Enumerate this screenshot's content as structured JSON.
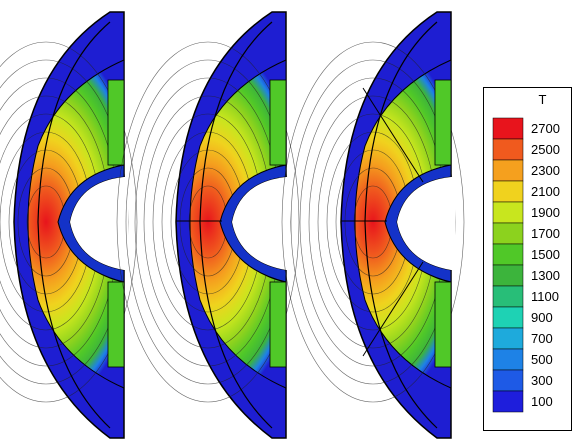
{
  "legend": {
    "title": "T",
    "levels": [
      {
        "label": "2700",
        "color": "#e8141c"
      },
      {
        "label": "2500",
        "color": "#f05a1e"
      },
      {
        "label": "2300",
        "color": "#f5a01e"
      },
      {
        "label": "2100",
        "color": "#f0d21e"
      },
      {
        "label": "1900",
        "color": "#c8e61e"
      },
      {
        "label": "1700",
        "color": "#8cd21e"
      },
      {
        "label": "1500",
        "color": "#50c828"
      },
      {
        "label": "1300",
        "color": "#3cb43c"
      },
      {
        "label": "1100",
        "color": "#28be78"
      },
      {
        "label": "900",
        "color": "#1ed2b4"
      },
      {
        "label": "700",
        "color": "#1eaadc"
      },
      {
        "label": "500",
        "color": "#1e82e6"
      },
      {
        "label": "300",
        "color": "#1e5ae6"
      },
      {
        "label": "100",
        "color": "#1e1edc"
      }
    ]
  },
  "colors": {
    "outer": "#1e1ed2",
    "inner_ring": "#1432c8",
    "edge": "#000000"
  }
}
